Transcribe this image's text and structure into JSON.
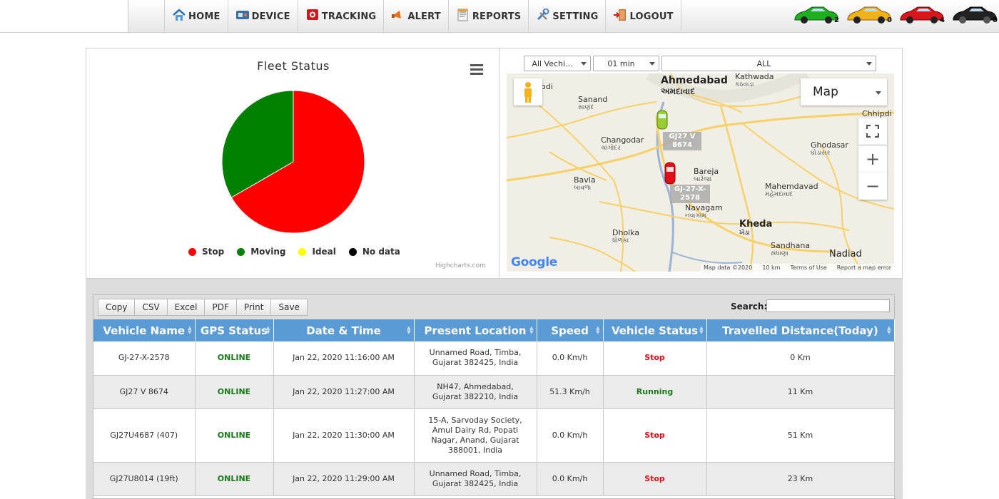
{
  "nav": {
    "items": [
      {
        "label": "HOME",
        "icon": "home-icon"
      },
      {
        "label": "DEVICE",
        "icon": "device-icon"
      },
      {
        "label": "TRACKING",
        "icon": "tracking-icon"
      },
      {
        "label": "ALERT",
        "icon": "alert-icon"
      },
      {
        "label": "REPORTS",
        "icon": "reports-icon"
      },
      {
        "label": "SETTING",
        "icon": "setting-icon"
      },
      {
        "label": "LOGOUT",
        "icon": "logout-icon"
      }
    ],
    "status_cars": [
      {
        "color": "#1fae1f",
        "count": "2"
      },
      {
        "color": "#f0b21a",
        "count": "0"
      },
      {
        "color": "#d8161e",
        "count": "4"
      },
      {
        "color": "#222222",
        "count": "0"
      }
    ]
  },
  "chart": {
    "title": "Fleet Status",
    "credits": "Highcharts.com"
  },
  "chart_data": {
    "type": "pie",
    "title": "Fleet Status",
    "categories": [
      "Stop",
      "Moving",
      "Ideal",
      "No data"
    ],
    "values": [
      4,
      2,
      0,
      0
    ],
    "colors": [
      "#ff0000",
      "#008000",
      "#ffff00",
      "#000000"
    ],
    "legend": "bottom"
  },
  "map": {
    "vehicle_select": "All Vechi...",
    "interval_select": "01 min",
    "filter_select": "ALL",
    "map_type": "Map",
    "attribution": "Map data ©2020",
    "scale": "10 km",
    "terms": "Terms of Use",
    "report": "Report a map error",
    "google": "Google",
    "vehicles": [
      {
        "label": "GJ27 V 8674",
        "color": "#9acd32"
      },
      {
        "label": "GJ-27-X-2578",
        "color": "#e0101a"
      }
    ],
    "places": [
      {
        "name": "Ahmedabad",
        "local": "અમદાવાદ",
        "big": true
      },
      {
        "name": "Kathwada",
        "local": "કઠવાડા"
      },
      {
        "name": "Sanand",
        "local": "સાણંદ"
      },
      {
        "name": "Changodar",
        "local": "ચાંગોદર"
      },
      {
        "name": "Bavla",
        "local": "બાવળા"
      },
      {
        "name": "Bareja",
        "local": "બારેજા"
      },
      {
        "name": "Navagam",
        "local": "નવાગામ"
      },
      {
        "name": "Dholka",
        "local": "ધોળકા"
      },
      {
        "name": "Kheda",
        "local": "ખેડા",
        "big": true
      },
      {
        "name": "Mahemdavad",
        "local": "મહેમદાવાદ"
      },
      {
        "name": "Ghodasar",
        "local": "ઘોડાસર"
      },
      {
        "name": "Sandhana",
        "local": "સંધાણા"
      },
      {
        "name": "Nadiad",
        "big": true
      },
      {
        "name": "Chhipdi"
      },
      {
        "name": "odi"
      }
    ]
  },
  "table": {
    "buttons": [
      "Copy",
      "CSV",
      "Excel",
      "PDF",
      "Print",
      "Save"
    ],
    "search_label": "Search:",
    "headers": [
      "Vehicle Name",
      "GPS Status",
      "Date & Time",
      "Present Location",
      "Speed",
      "Vehicle Status",
      "Travelled Distance(Today)"
    ],
    "rows": [
      {
        "vehicle": "GJ-27-X-2578",
        "gps": "ONLINE",
        "datetime": "Jan 22, 2020 11:16:00 AM",
        "location": "Unnamed Road, Timba, Gujarat 382425, India",
        "speed": "0.0 Km/h",
        "status": "Stop",
        "distance": "0 Km"
      },
      {
        "vehicle": "GJ27 V 8674",
        "gps": "ONLINE",
        "datetime": "Jan 22, 2020 11:27:00 AM",
        "location": "NH47, Ahmedabad, Gujarat 382210, India",
        "speed": "51.3 Km/h",
        "status": "Running",
        "distance": "11 Km"
      },
      {
        "vehicle": "GJ27U4687 (407)",
        "gps": "ONLINE",
        "datetime": "Jan 22, 2020 11:30:00 AM",
        "location": "15-A, Sarvoday Society, Amul Dairy Rd, Popati Nagar, Anand, Gujarat 388001, India",
        "speed": "0.0 Km/h",
        "status": "Stop",
        "distance": "51 Km"
      },
      {
        "vehicle": "GJ27U8014 (19ft)",
        "gps": "ONLINE",
        "datetime": "Jan 22, 2020 11:29:00 AM",
        "location": "Unnamed Road, Timba, Gujarat 382425, India",
        "speed": "0.0 Km/h",
        "status": "Stop",
        "distance": "23 Km"
      }
    ]
  }
}
